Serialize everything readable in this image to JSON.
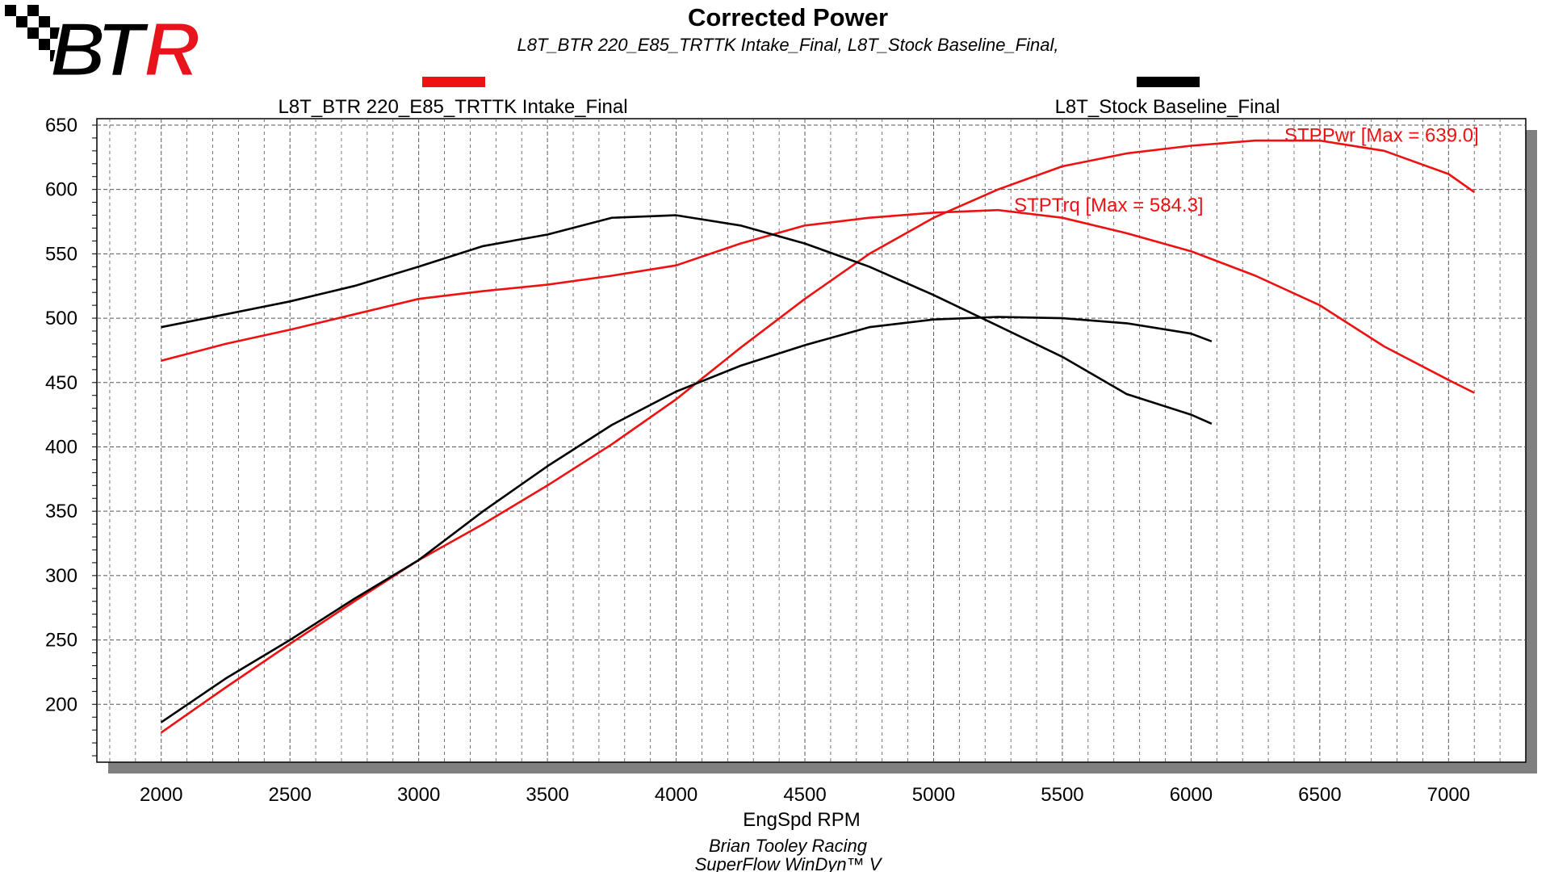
{
  "colors": {
    "red": "#ee1111",
    "black": "#000000",
    "grid": "#555555",
    "shadow": "#808080"
  },
  "logo": {
    "text_b": "B",
    "text_t": "T",
    "text_r": "R"
  },
  "chart_data": {
    "type": "line",
    "title": "Corrected Power",
    "subtitle": "L8T_BTR 220_E85_TRTTK Intake_Final, L8T_Stock Baseline_Final,",
    "xlabel": "EngSpd RPM",
    "ylabel": "",
    "xlim": [
      1750,
      7300
    ],
    "ylim": [
      155,
      655
    ],
    "xticks": [
      2000,
      2500,
      3000,
      3500,
      4000,
      4500,
      5000,
      5500,
      6000,
      6500,
      7000
    ],
    "yticks": [
      200,
      250,
      300,
      350,
      400,
      450,
      500,
      550,
      600,
      650
    ],
    "grid": true,
    "legend": [
      {
        "name": "L8T_BTR 220_E85_TRTTK Intake_Final",
        "color": "#ee1111"
      },
      {
        "name": "L8T_Stock Baseline_Final",
        "color": "#000000"
      }
    ],
    "annotations": [
      {
        "text": "STPPwr [Max = 639.0]",
        "color": "#ee1111",
        "x": 6740,
        "y": 642
      },
      {
        "text": "STPTrq [Max = 584.3]",
        "color": "#ee1111",
        "x": 5680,
        "y": 588
      }
    ],
    "series": [
      {
        "name": "L8T_BTR 220_E85_TRTTK Intake_Final STPPwr",
        "legend_group": 0,
        "color": "#ee1111",
        "x": [
          2000,
          2250,
          2500,
          2750,
          3000,
          3250,
          3500,
          3750,
          4000,
          4250,
          4500,
          4750,
          5000,
          5250,
          5500,
          5750,
          6000,
          6250,
          6500,
          6750,
          7000,
          7100
        ],
        "y": [
          178,
          213,
          247,
          280,
          312,
          340,
          370,
          402,
          437,
          477,
          515,
          550,
          578,
          600,
          618,
          628,
          634,
          638,
          638,
          630,
          612,
          598
        ]
      },
      {
        "name": "L8T_BTR 220_E85_TRTTK Intake_Final STPTrq",
        "legend_group": 0,
        "color": "#ee1111",
        "x": [
          2000,
          2250,
          2500,
          2750,
          3000,
          3250,
          3500,
          3750,
          4000,
          4250,
          4500,
          4750,
          5000,
          5250,
          5500,
          5750,
          6000,
          6250,
          6500,
          6750,
          7000,
          7100
        ],
        "y": [
          467,
          480,
          491,
          503,
          515,
          521,
          526,
          533,
          541,
          558,
          572,
          578,
          582,
          584,
          578,
          566,
          552,
          533,
          510,
          478,
          452,
          442
        ]
      },
      {
        "name": "L8T_Stock Baseline_Final STPPwr",
        "legend_group": 1,
        "color": "#000000",
        "x": [
          2000,
          2250,
          2500,
          2750,
          3000,
          3250,
          3500,
          3750,
          4000,
          4250,
          4500,
          4750,
          5000,
          5250,
          5500,
          5750,
          6000,
          6080
        ],
        "y": [
          186,
          220,
          250,
          282,
          312,
          350,
          385,
          417,
          443,
          463,
          479,
          493,
          499,
          501,
          500,
          496,
          488,
          482
        ]
      },
      {
        "name": "L8T_Stock Baseline_Final STPTrq",
        "legend_group": 1,
        "color": "#000000",
        "x": [
          2000,
          2250,
          2500,
          2750,
          3000,
          3250,
          3500,
          3750,
          4000,
          4250,
          4500,
          4750,
          5000,
          5250,
          5500,
          5750,
          6000,
          6080
        ],
        "y": [
          493,
          503,
          513,
          525,
          540,
          556,
          565,
          578,
          580,
          572,
          558,
          540,
          518,
          494,
          470,
          441,
          425,
          418
        ]
      }
    ]
  },
  "footer": {
    "line1": "Brian Tooley Racing",
    "line2": "SuperFlow WinDyn™ V"
  }
}
